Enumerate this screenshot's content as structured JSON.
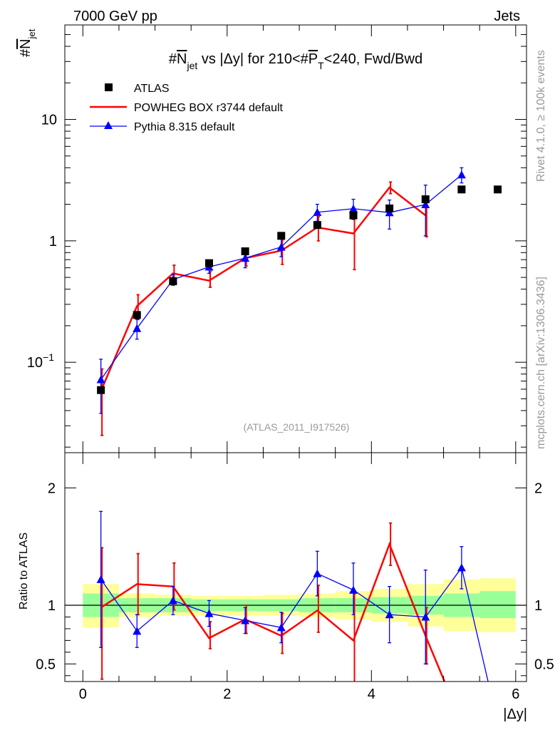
{
  "header": {
    "left": "7000 GeV pp",
    "right": "Jets"
  },
  "side_labels": {
    "rivet": "Rivet 4.1.0, ≥ 100k events",
    "mcplots": "mcplots.cern.ch [arXiv:1306.3436]"
  },
  "watermark": "(ATLAS_2011_I917526)",
  "colors": {
    "data": "#000000",
    "powheg": "#ff0000",
    "pythia": "#0000ff",
    "band_inner": "#99ff99",
    "band_outer": "#ffff99"
  },
  "chart_data": [
    {
      "type": "line",
      "scale": "log",
      "title": "#N_jet vs |Δy| for 210<#P_T<240, Fwd/Bwd",
      "title_parts": {
        "hash1": "#",
        "N": "N",
        "jet": "jet",
        "mid": " vs |Δy| for 210<#",
        "P": "P",
        "T": "T",
        "end": "<240, Fwd/Bwd"
      },
      "ylabel_parts": {
        "hash": "#",
        "N": "N",
        "sub": "jet"
      },
      "xlim": [
        -0.25,
        6.15
      ],
      "ylim": [
        0.018,
        60
      ],
      "yticks": [
        {
          "value": 10,
          "label": "10"
        },
        {
          "value": 1,
          "label": "1"
        },
        {
          "value": 0.1,
          "label": "10",
          "sup": "−1"
        }
      ],
      "legend": [
        {
          "name": "ATLAS",
          "marker": "square"
        },
        {
          "name": "POWHEG BOX r3744 default",
          "marker": "line"
        },
        {
          "name": "Pythia 8.315 default",
          "marker": "triangle"
        }
      ],
      "x": [
        0.25,
        0.75,
        1.25,
        1.75,
        2.25,
        2.75,
        3.25,
        3.75,
        4.25,
        4.75,
        5.25,
        5.75
      ],
      "series": [
        {
          "name": "ATLAS",
          "values": [
            0.059,
            0.245,
            0.465,
            0.655,
            0.82,
            1.1,
            1.35,
            1.62,
            1.85,
            2.2,
            2.65,
            2.65
          ]
        },
        {
          "name": "POWHEG BOX r3744 default",
          "x": [
            0.25,
            0.75,
            1.25,
            1.75,
            2.25,
            2.75,
            3.25,
            3.75,
            4.25,
            4.75
          ],
          "values": [
            0.058,
            0.29,
            0.54,
            0.47,
            0.72,
            0.83,
            1.29,
            1.15,
            2.75,
            1.62
          ],
          "err_lo": [
            0.025,
            0.225,
            0.45,
            0.415,
            0.62,
            0.64,
            1.0,
            0.58,
            2.45,
            1.08
          ],
          "err_hi": [
            0.088,
            0.36,
            0.63,
            0.56,
            0.82,
            1.02,
            1.58,
            1.72,
            3.05,
            2.16
          ]
        },
        {
          "name": "Pythia 8.315 default",
          "x": [
            0.25,
            0.75,
            1.25,
            1.75,
            2.25,
            2.75,
            3.25,
            3.75,
            4.25,
            4.75,
            5.25
          ],
          "values": [
            0.072,
            0.19,
            0.48,
            0.61,
            0.72,
            0.89,
            1.72,
            1.84,
            1.71,
            1.99,
            3.5
          ],
          "err_lo": [
            0.038,
            0.155,
            0.43,
            0.54,
            0.6,
            0.74,
            1.45,
            1.5,
            1.25,
            1.1,
            3.0
          ],
          "err_hi": [
            0.106,
            0.225,
            0.53,
            0.68,
            0.84,
            1.04,
            2.0,
            2.2,
            2.17,
            2.88,
            4.0
          ]
        }
      ]
    },
    {
      "type": "line",
      "title": "Ratio to ATLAS",
      "ylabel": "Ratio to ATLAS",
      "xlabel": "|Δy|",
      "xlim": [
        -0.25,
        6.15
      ],
      "ylim": [
        0.35,
        2.3
      ],
      "xticks": [
        0,
        2,
        4,
        6
      ],
      "yticks": [
        0.5,
        1,
        2
      ],
      "reference_line": 1,
      "band_edges": [
        0.0,
        0.5,
        1.0,
        1.5,
        2.0,
        2.5,
        3.0,
        3.5,
        4.0,
        4.5,
        5.0,
        5.5,
        6.0
      ],
      "band_inner": [
        [
          0.9,
          1.1
        ],
        [
          0.94,
          1.06
        ],
        [
          0.94,
          1.06
        ],
        [
          0.95,
          1.05
        ],
        [
          0.95,
          1.05
        ],
        [
          0.95,
          1.05
        ],
        [
          0.94,
          1.06
        ],
        [
          0.94,
          1.06
        ],
        [
          0.93,
          1.07
        ],
        [
          0.92,
          1.08
        ],
        [
          0.9,
          1.1
        ],
        [
          0.89,
          1.12
        ]
      ],
      "band_outer": [
        [
          0.81,
          1.18
        ],
        [
          0.9,
          1.1
        ],
        [
          0.91,
          1.09
        ],
        [
          0.91,
          1.08
        ],
        [
          0.91,
          1.08
        ],
        [
          0.91,
          1.09
        ],
        [
          0.9,
          1.1
        ],
        [
          0.88,
          1.12
        ],
        [
          0.86,
          1.14
        ],
        [
          0.82,
          1.18
        ],
        [
          0.78,
          1.22
        ],
        [
          0.77,
          1.23
        ]
      ],
      "series": [
        {
          "name": "POWHEG BOX r3744 default",
          "x": [
            0.25,
            0.75,
            1.25,
            1.75,
            2.25,
            2.75,
            3.25,
            3.75,
            4.25,
            4.75,
            5.25
          ],
          "values": [
            0.98,
            1.18,
            1.16,
            0.72,
            0.88,
            0.74,
            0.955,
            0.7,
            1.52,
            0.74,
            0.0
          ],
          "err_lo": [
            0.37,
            0.92,
            0.96,
            0.63,
            0.76,
            0.59,
            0.77,
            0.3,
            1.34,
            0.5
          ],
          "err_hi": [
            1.49,
            1.44,
            1.36,
            0.86,
            1.0,
            0.93,
            1.17,
            1.1,
            1.7,
            0.98
          ]
        },
        {
          "name": "Pythia 8.315 default",
          "x": [
            0.25,
            0.75,
            1.25,
            1.75,
            2.25,
            2.75,
            3.25,
            3.75,
            4.25,
            4.75,
            5.25,
            5.75
          ],
          "values": [
            1.22,
            0.78,
            1.04,
            0.93,
            0.87,
            0.81,
            1.27,
            1.13,
            0.92,
            0.9,
            1.32,
            0.0
          ],
          "err_lo": [
            0.64,
            0.64,
            0.92,
            0.82,
            0.76,
            0.68,
            1.08,
            0.92,
            0.68,
            0.5,
            1.14
          ],
          "err_hi": [
            1.8,
            0.92,
            1.16,
            1.04,
            0.98,
            0.94,
            1.46,
            1.36,
            1.16,
            1.3,
            1.5
          ]
        }
      ]
    }
  ]
}
